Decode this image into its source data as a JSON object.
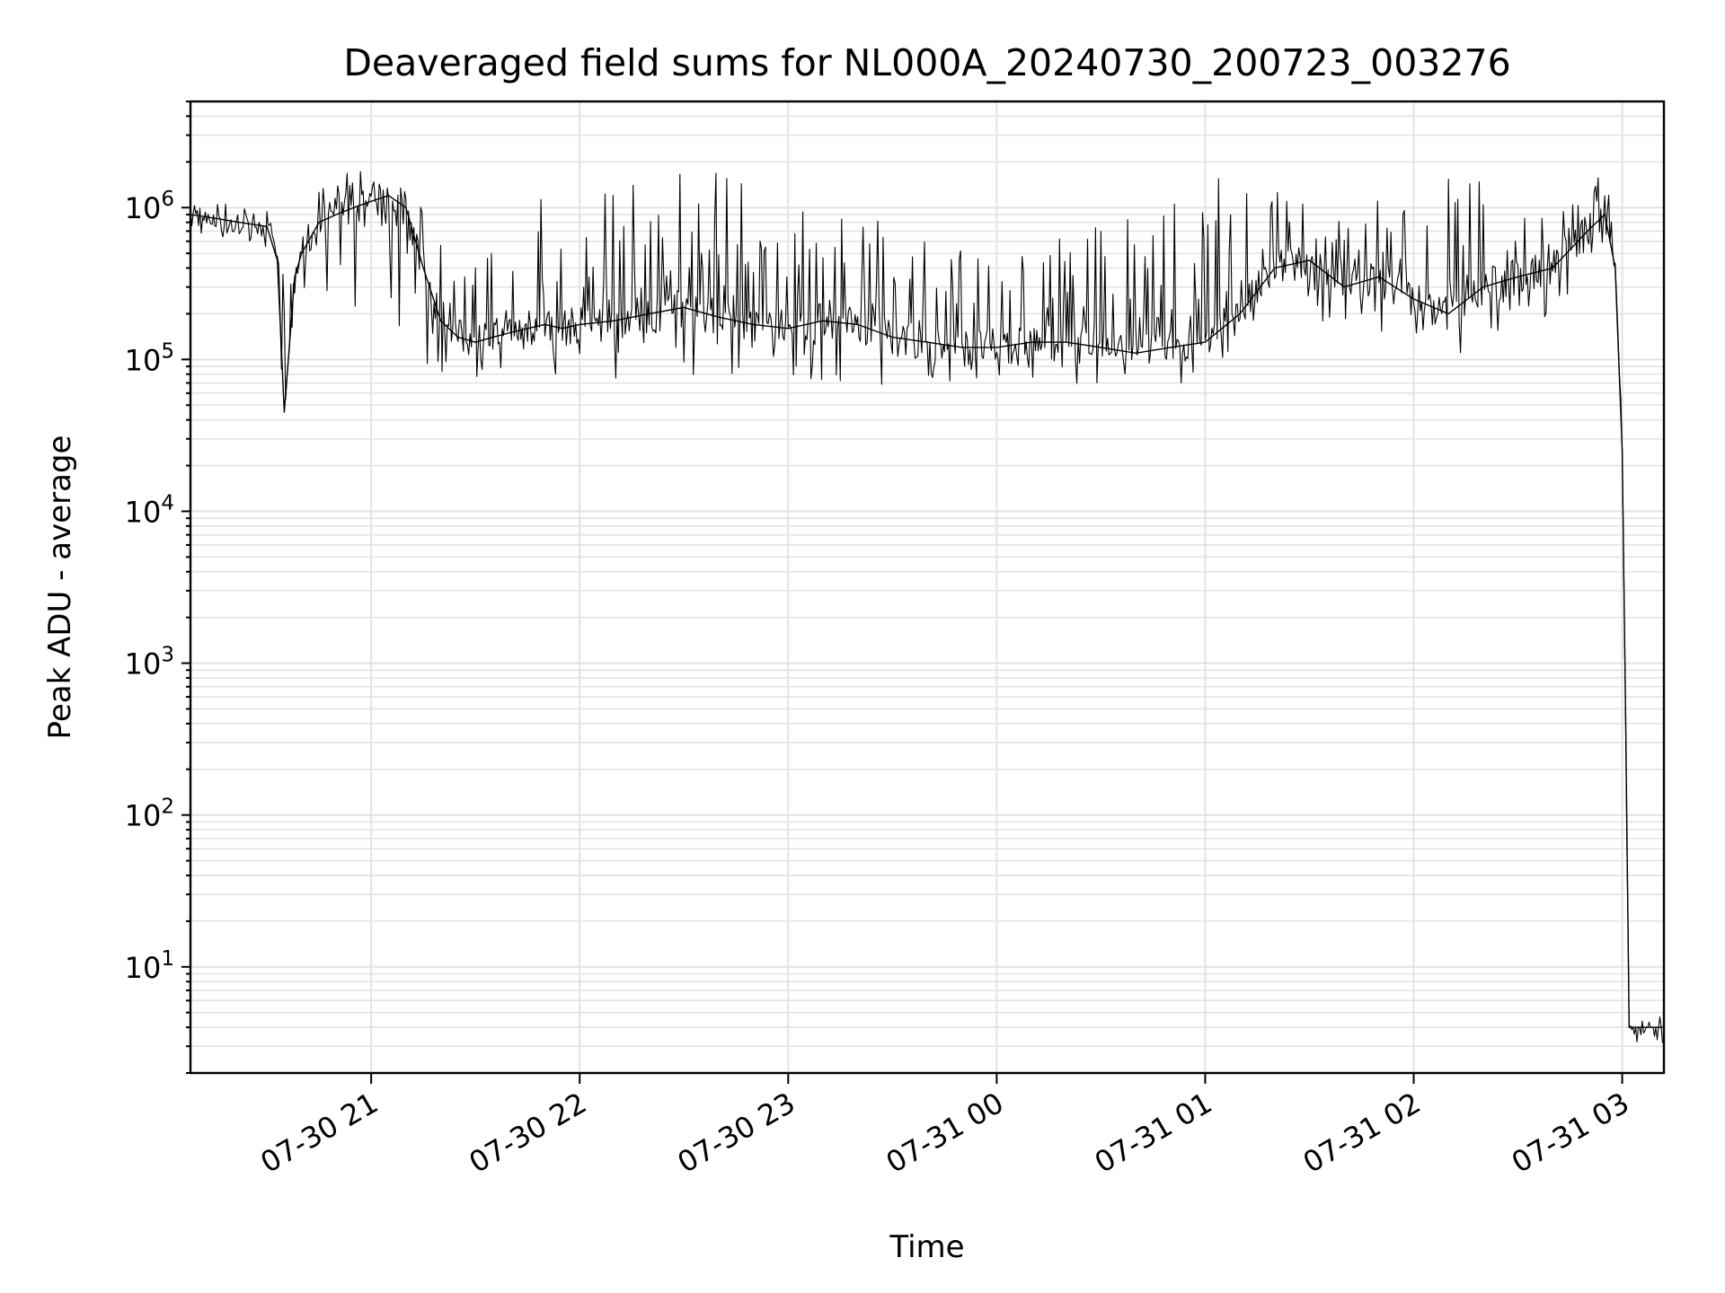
{
  "chart_data": {
    "type": "line",
    "title": "Deaveraged field sums for NL000A_20240730_200723_003276",
    "xlabel": "Time",
    "ylabel": "Peak ADU - average",
    "y_scale": "log",
    "ylim": [
      2,
      5000000.0
    ],
    "xlim": [
      "2024-07-30 20:08",
      "2024-07-31 03:12"
    ],
    "grid": true,
    "line_color": "#000000",
    "x_ticks": [
      {
        "t": "2024-07-30 21:00",
        "label": "07-30 21"
      },
      {
        "t": "2024-07-30 22:00",
        "label": "07-30 22"
      },
      {
        "t": "2024-07-30 23:00",
        "label": "07-30 23"
      },
      {
        "t": "2024-07-31 00:00",
        "label": "07-31 00"
      },
      {
        "t": "2024-07-31 01:00",
        "label": "07-31 01"
      },
      {
        "t": "2024-07-31 02:00",
        "label": "07-31 02"
      },
      {
        "t": "2024-07-31 03:00",
        "label": "07-31 03"
      }
    ],
    "y_ticks": [
      {
        "v": 10,
        "base": "10",
        "exp": "1"
      },
      {
        "v": 100,
        "base": "10",
        "exp": "2"
      },
      {
        "v": 1000,
        "base": "10",
        "exp": "3"
      },
      {
        "v": 10000,
        "base": "10",
        "exp": "4"
      },
      {
        "v": 100000,
        "base": "10",
        "exp": "5"
      },
      {
        "v": 1000000,
        "base": "10",
        "exp": "6"
      }
    ],
    "series": [
      {
        "x": [
          "2024-07-30 20:08",
          "2024-07-30 20:15",
          "2024-07-30 20:22",
          "2024-07-30 20:30",
          "2024-07-30 20:33",
          "2024-07-30 20:35",
          "2024-07-30 20:38",
          "2024-07-30 20:40",
          "2024-07-30 20:45",
          "2024-07-30 20:50",
          "2024-07-30 20:55",
          "2024-07-30 21:00",
          "2024-07-30 21:05",
          "2024-07-30 21:10",
          "2024-07-30 21:15",
          "2024-07-30 21:20",
          "2024-07-30 21:25",
          "2024-07-30 21:30",
          "2024-07-30 21:35",
          "2024-07-30 21:40",
          "2024-07-30 21:45",
          "2024-07-30 21:50",
          "2024-07-30 21:55",
          "2024-07-30 22:00",
          "2024-07-30 22:10",
          "2024-07-30 22:20",
          "2024-07-30 22:30",
          "2024-07-30 22:40",
          "2024-07-30 22:50",
          "2024-07-30 23:00",
          "2024-07-30 23:10",
          "2024-07-30 23:20",
          "2024-07-30 23:30",
          "2024-07-30 23:40",
          "2024-07-30 23:50",
          "2024-07-31 00:00",
          "2024-07-31 00:10",
          "2024-07-31 00:20",
          "2024-07-31 00:30",
          "2024-07-31 00:40",
          "2024-07-31 00:50",
          "2024-07-31 01:00",
          "2024-07-31 01:10",
          "2024-07-31 01:20",
          "2024-07-31 01:30",
          "2024-07-31 01:40",
          "2024-07-31 01:50",
          "2024-07-31 02:00",
          "2024-07-31 02:10",
          "2024-07-31 02:20",
          "2024-07-31 02:30",
          "2024-07-31 02:40",
          "2024-07-31 02:50",
          "2024-07-31 02:55",
          "2024-07-31 02:58",
          "2024-07-31 03:00",
          "2024-07-31 03:01",
          "2024-07-31 03:02",
          "2024-07-31 03:05",
          "2024-07-31 03:12"
        ],
        "y": [
          900000,
          850000,
          800000,
          750000,
          450000,
          45000,
          350000,
          500000,
          800000,
          900000,
          1000000,
          1100000,
          1200000,
          1000000,
          400000,
          180000,
          140000,
          130000,
          140000,
          150000,
          160000,
          170000,
          160000,
          170000,
          180000,
          200000,
          220000,
          190000,
          170000,
          160000,
          180000,
          170000,
          140000,
          130000,
          120000,
          120000,
          130000,
          130000,
          120000,
          110000,
          120000,
          130000,
          200000,
          400000,
          450000,
          300000,
          350000,
          250000,
          200000,
          300000,
          350000,
          400000,
          700000,
          900000,
          400000,
          25000,
          400,
          4,
          4,
          4
        ],
        "spike_max": [
          1000000,
          1000000,
          950000,
          900000,
          500000,
          400000,
          400000,
          700000,
          1500000,
          1700000,
          1800000,
          1800000,
          1900000,
          1900000,
          1600000,
          600000,
          500000,
          500000,
          600000,
          700000,
          1400000,
          1700000,
          1500000,
          1700000,
          1800000,
          1800000,
          1800000,
          1800000,
          1700000,
          1400000,
          1200000,
          1000000,
          800000,
          700000,
          600000,
          500000,
          500000,
          700000,
          800000,
          900000,
          1400000,
          1700000,
          1700000,
          1600000,
          1000000,
          900000,
          1200000,
          1400000,
          1900000,
          1800000,
          1700000,
          1200000,
          1200000,
          2800000,
          600000,
          25000,
          400,
          4,
          4,
          4
        ],
        "spike_min": [
          650000,
          650000,
          600000,
          500000,
          350000,
          45000,
          200000,
          250000,
          300000,
          250000,
          200000,
          180000,
          150000,
          120000,
          90000,
          80000,
          75000,
          75000,
          80000,
          80000,
          80000,
          75000,
          80000,
          90000,
          70000,
          80000,
          80000,
          75000,
          80000,
          80000,
          70000,
          70000,
          55000,
          70000,
          65000,
          70000,
          70000,
          70000,
          65000,
          60000,
          60000,
          70000,
          100000,
          180000,
          200000,
          150000,
          150000,
          100000,
          90000,
          100000,
          150000,
          200000,
          350000,
          500000,
          300000,
          25000,
          400,
          4,
          4,
          4
        ]
      }
    ]
  }
}
